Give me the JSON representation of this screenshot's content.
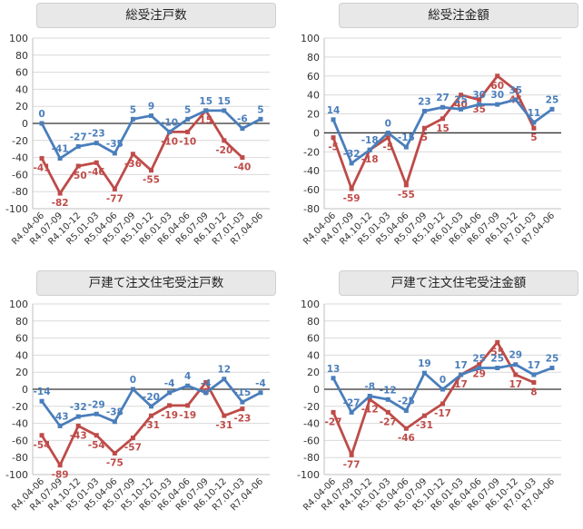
{
  "colors": {
    "blue": "#4a7ebb",
    "red": "#be4b48",
    "grid": "#d9d9d9",
    "axis": "#333333"
  },
  "chart_data": [
    {
      "type": "line",
      "title": "総受注戸数",
      "categories": [
        "R4.04-06",
        "R4.07-09",
        "R4.10-12",
        "R5.01-03",
        "R5.04-06",
        "R5.07-09",
        "R5.10-12",
        "R6.01-03",
        "R6.04-06",
        "R6.07-09",
        "R6.10-12",
        "R7.01-03",
        "R7.04-06"
      ],
      "ylim": [
        -100,
        100
      ],
      "yticks": [
        -100,
        -80,
        -60,
        -40,
        -20,
        0,
        20,
        40,
        60,
        80,
        100
      ],
      "series": [
        {
          "color": "blue",
          "values": [
            0,
            -41,
            -27,
            -23,
            -35,
            5,
            9,
            -10,
            5,
            15,
            15,
            -6,
            5
          ],
          "labels": [
            "0",
            "-41",
            "-27",
            "-23",
            "-35",
            "5",
            "9",
            "-10",
            "5",
            "15",
            "15",
            "-6",
            "5"
          ]
        },
        {
          "color": "red",
          "values": [
            -41,
            -82,
            -50,
            -46,
            -77,
            -36,
            -55,
            -10,
            -10,
            15,
            -20,
            -40,
            null
          ],
          "labels": [
            "-41",
            "-82",
            "-50",
            "-46",
            "-77",
            "-36",
            "-55",
            "-10",
            "-10",
            "15",
            "-20",
            "-40",
            ""
          ]
        }
      ]
    },
    {
      "type": "line",
      "title": "総受注金額",
      "categories": [
        "R4.04-06",
        "R4.07-09",
        "R4.10-12",
        "R5.01-03",
        "R5.04-06",
        "R5.07-09",
        "R5.10-12",
        "R6.01-03",
        "R6.04-06",
        "R6.07-09",
        "R6.10-12",
        "R7.01-03",
        "R7.04-06"
      ],
      "ylim": [
        -80,
        100
      ],
      "yticks": [
        -80,
        -60,
        -40,
        -20,
        0,
        20,
        40,
        60,
        80,
        100
      ],
      "series": [
        {
          "color": "blue",
          "values": [
            14,
            -32,
            -18,
            0,
            -15,
            23,
            27,
            25,
            30,
            30,
            35,
            11,
            25
          ],
          "labels": [
            "14",
            "-32",
            "-18",
            "0",
            "-15",
            "23",
            "27",
            "25",
            "30",
            "30",
            "35",
            "11",
            "25"
          ]
        },
        {
          "color": "red",
          "values": [
            -5,
            -59,
            -18,
            -5,
            -55,
            5,
            15,
            40,
            35,
            60,
            45,
            5,
            null
          ],
          "labels": [
            "-5",
            "-59",
            "-18",
            "-5",
            "-55",
            "5",
            "15",
            "40",
            "35",
            "60",
            "45",
            "5",
            ""
          ]
        }
      ]
    },
    {
      "type": "line",
      "title": "戸建て注文住宅受注戸数",
      "categories": [
        "R4.04-06",
        "R4.07-09",
        "R4.10-12",
        "R5.01-03",
        "R5.04-06",
        "R5.07-09",
        "R5.10-12",
        "R6.01-03",
        "R6.04-06",
        "R6.07-09",
        "R6.10-12",
        "R7.01-03",
        "R7.04-06"
      ],
      "ylim": [
        -100,
        100
      ],
      "yticks": [
        -100,
        -80,
        -60,
        -40,
        -20,
        0,
        20,
        40,
        60,
        80,
        100
      ],
      "series": [
        {
          "color": "blue",
          "values": [
            -14,
            -43,
            -32,
            -29,
            -38,
            0,
            -20,
            -4,
            4,
            -4,
            12,
            -15,
            -4
          ],
          "labels": [
            "-14",
            "-43",
            "-32",
            "-29",
            "-38",
            "0",
            "-20",
            "-4",
            "4",
            "-4",
            "12",
            "-15",
            "-4"
          ]
        },
        {
          "color": "red",
          "values": [
            -54,
            -89,
            -43,
            -54,
            -75,
            -57,
            -31,
            -19,
            -19,
            8,
            -31,
            -23,
            null
          ],
          "labels": [
            "-54",
            "-89",
            "-43",
            "-54",
            "-75",
            "-57",
            "-31",
            "-19",
            "-19",
            "8",
            "-31",
            "-23",
            ""
          ]
        }
      ]
    },
    {
      "type": "line",
      "title": "戸建て注文住宅受注金額",
      "categories": [
        "R4.04-06",
        "R4.07-09",
        "R4.10-12",
        "R5.01-03",
        "R5.04-06",
        "R5.07-09",
        "R5.10-12",
        "R6.01-03",
        "R6.04-06",
        "R6.07-09",
        "R6.10-12",
        "R7.01-03",
        "R7.04-06"
      ],
      "ylim": [
        -100,
        100
      ],
      "yticks": [
        -100,
        -80,
        -60,
        -40,
        -20,
        0,
        20,
        40,
        60,
        80,
        100
      ],
      "series": [
        {
          "color": "blue",
          "values": [
            13,
            -27,
            -8,
            -12,
            -25,
            19,
            0,
            17,
            25,
            25,
            29,
            17,
            25
          ],
          "labels": [
            "13",
            "-27",
            "-8",
            "-12",
            "-25",
            "19",
            "0",
            "17",
            "25",
            "25",
            "29",
            "17",
            "25"
          ]
        },
        {
          "color": "red",
          "values": [
            -27,
            -77,
            -12,
            -27,
            -46,
            -31,
            -17,
            17,
            29,
            55,
            17,
            8,
            null
          ],
          "labels": [
            "-27",
            "-77",
            "-12",
            "-27",
            "-46",
            "-31",
            "-17",
            "17",
            "29",
            "55",
            "17",
            "8",
            ""
          ]
        }
      ]
    }
  ]
}
